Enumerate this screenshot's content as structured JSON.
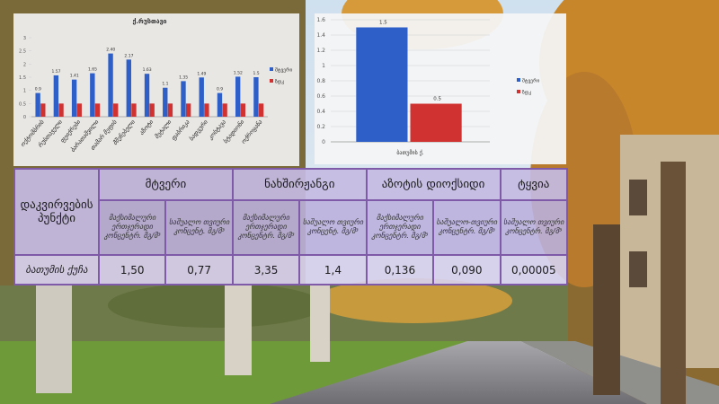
{
  "chart_data": [
    {
      "type": "bar",
      "title": "ქ.რუსთავი",
      "categories": [
        "ოქტომბრის",
        "რუსთაველი",
        "ფეიქრები",
        "ბარათაშვილი",
        "თამარ მეფის",
        "მშენებელი",
        "აზოტი",
        "მეტალი",
        "ფაბრიკა",
        "სადგური",
        "კოსტავა",
        "სტადიონი",
        "ოქროყანა"
      ],
      "series": [
        {
          "name": "მტვერი",
          "color": "#2e5fc8",
          "values": [
            0.9,
            1.57,
            1.41,
            1.65,
            2.4,
            2.17,
            1.63,
            1.1,
            1.35,
            1.49,
            0.9,
            1.52,
            1.5
          ],
          "value_labels": [
            "0.9",
            "1.57",
            "1.41",
            "1.65",
            "2.40",
            "2.17",
            "1.63",
            "1.1",
            "1.35",
            "1.49",
            "0.9",
            "1.52",
            "1.5"
          ]
        },
        {
          "name": "ზდკ",
          "color": "#d03232",
          "values": [
            0.5,
            0.5,
            0.5,
            0.5,
            0.5,
            0.5,
            0.5,
            0.5,
            0.5,
            0.5,
            0.5,
            0.5,
            0.5
          ]
        }
      ],
      "ylim": [
        0,
        3
      ],
      "yticks": [
        0,
        0.5,
        1,
        1.5,
        2,
        2.5,
        3
      ],
      "grid": false,
      "legend": "right"
    },
    {
      "type": "bar",
      "categories": [
        "ბათუმის ქ."
      ],
      "series": [
        {
          "name": "მტვერი",
          "color": "#2e5fc8",
          "values": [
            1.5
          ]
        },
        {
          "name": "ზდკ",
          "color": "#d03232",
          "values": [
            0.5
          ]
        }
      ],
      "data_labels": true,
      "ylim": [
        0,
        1.6
      ],
      "yticks": [
        0,
        0.2,
        0.4,
        0.6,
        0.8,
        1,
        1.2,
        1.4,
        1.6
      ],
      "grid": true,
      "legend": "right"
    }
  ],
  "table": {
    "header": [
      "დაკვირვების პუნქტი",
      "მტვერი",
      "ნახშირჟანგი",
      "აზოტის დიოქსიდი",
      "ტყვია"
    ],
    "subheader": [
      "მაქსიმალური ერთჯერადი კონცენტრ. მგ/მ³",
      "საშუალო თვიური კონცენტ. მგ/მ³",
      "მაქსიმალური ერთჯერადი კონცენტრ. მგ/მ³",
      "საშუალო თვიური კონცენტ. მგ/მ³",
      "მაქსიმალური ერთჯერადი კონცენტრ. მგ/მ³",
      "საშუალო-თვიური კონცენტრ. მგ/მ³",
      "საშუალო თვიური კონცენტრ. მგ/მ³"
    ],
    "rows": [
      [
        "ბათუმის ქუჩა",
        "1,50",
        "0,77",
        "3,35",
        "1,4",
        "0,136",
        "0,090",
        "0,00005"
      ]
    ]
  }
}
